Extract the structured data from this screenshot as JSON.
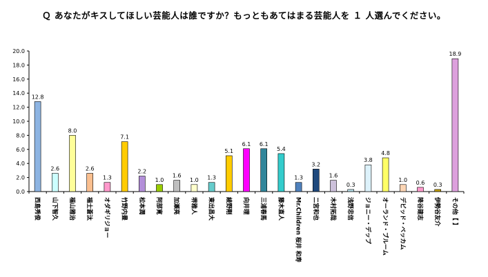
{
  "chart_data": {
    "type": "bar",
    "title": "Ｑ あなたがキスしてほしい芸能人は誰ですか？もっともあてはまる芸能人を １ 人選んでください。",
    "xlabel": "",
    "ylabel": "",
    "ylim": [
      0,
      20
    ],
    "yticks": [
      "0.0",
      "2.0",
      "4.0",
      "6.0",
      "8.0",
      "10.0",
      "12.0",
      "14.0",
      "16.0",
      "18.0",
      "20.0"
    ],
    "grid": false,
    "legend": "none",
    "categories": [
      "西島秀俊",
      "山下智久",
      "福山雅治",
      "福士蒼汰",
      "オダギリジョー",
      "竹野内豊",
      "松本潤",
      "阿部寛",
      "加瀬亮",
      "堺雅人",
      "東出昌大",
      "綾野剛",
      "向井理",
      "三浦春馬",
      "藤木直人",
      "Mr.Children 桜井 和寿",
      "二宮和也",
      "木村拓哉",
      "浅野忠信",
      "ジョニー・デップ",
      "オーランド・ブルーム",
      "デビッド・ベッカム",
      "降谷建志",
      "伊勢谷友介",
      "その他【 】"
    ],
    "values": [
      12.8,
      2.6,
      8.0,
      2.6,
      1.3,
      7.1,
      2.2,
      1.0,
      1.6,
      1.0,
      1.3,
      5.1,
      6.1,
      6.1,
      5.4,
      1.3,
      3.2,
      1.6,
      0.3,
      3.8,
      4.8,
      1.0,
      0.6,
      0.3,
      18.9
    ],
    "value_labels": [
      "12.8",
      "2.6",
      "8.0",
      "2.6",
      "1.3",
      "7.1",
      "2.2",
      "1.0",
      "1.6",
      "1.0",
      "1.3",
      "5.1",
      "6.1",
      "6.1",
      "5.4",
      "1.3",
      "3.2",
      "1.6",
      "0.3",
      "3.8",
      "4.8",
      "1.0",
      "0.6",
      "0.3",
      "18.9"
    ],
    "colors": [
      "#8DB4E2",
      "#CCFFFF",
      "#FFFF99",
      "#FABF8F",
      "#FF99CC",
      "#FFCC00",
      "#B38FD9",
      "#99CC00",
      "#BFBFBF",
      "#FFFFCC",
      "#66CCCC",
      "#FFCC00",
      "#FF00FF",
      "#31869B",
      "#33CCCC",
      "#4F81BD",
      "#1F497D",
      "#CCC0DA",
      "#B7DEE8",
      "#DDF2FB",
      "#FFFF66",
      "#FCD5B4",
      "#FF99CC",
      "#C4A000",
      "#DDA0DD"
    ]
  }
}
